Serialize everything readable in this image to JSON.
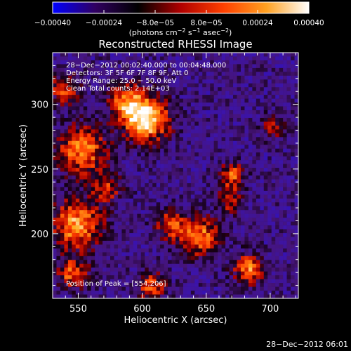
{
  "colorbar": {
    "tick_labels": [
      "−0.00040",
      "−0.00024",
      "−8.0e−05",
      "8.0e−05",
      "0.00024",
      "0.00040"
    ],
    "tick_values": [
      -0.0004,
      -0.00024,
      -8e-05,
      8e-05,
      0.00024,
      0.0004
    ],
    "range": [
      -0.0004,
      0.0004
    ],
    "units_label": "(photons cm",
    "units_sup1": "−2",
    "units_mid1": " s",
    "units_sup2": "−1",
    "units_mid2": " asec",
    "units_sup3": "−2",
    "units_end": ")",
    "colormap": [
      "#0000ff",
      "#300060",
      "#000000",
      "#b00000",
      "#ff4000",
      "#ffa020",
      "#ffffff"
    ]
  },
  "chart_data": {
    "type": "heatmap",
    "title": "Reconstructed RHESSI Image",
    "xlabel": "Heliocentric X (arcsec)",
    "ylabel": "Heliocentric Y (arcsec)",
    "xlim": [
      530,
      722
    ],
    "ylim": [
      150,
      340
    ],
    "x_ticks": [
      550,
      600,
      650,
      700
    ],
    "y_ticks": [
      200,
      250,
      300
    ],
    "annotations": [
      "28−Dec−2012 00:02:40.000 to 00:04:48.000",
      "Detectors: 3F 5F 6F 7F 8F 9F, Att 0",
      "Energy Range: 25.0 − 50.0 keV",
      "Clean     Total counts: 2.14E+03"
    ],
    "peak_label": "Position of Peak = [554,206]",
    "peak_position": [
      554,
      206
    ]
  },
  "footer": {
    "timestamp": "28−Dec−2012 06:01"
  }
}
